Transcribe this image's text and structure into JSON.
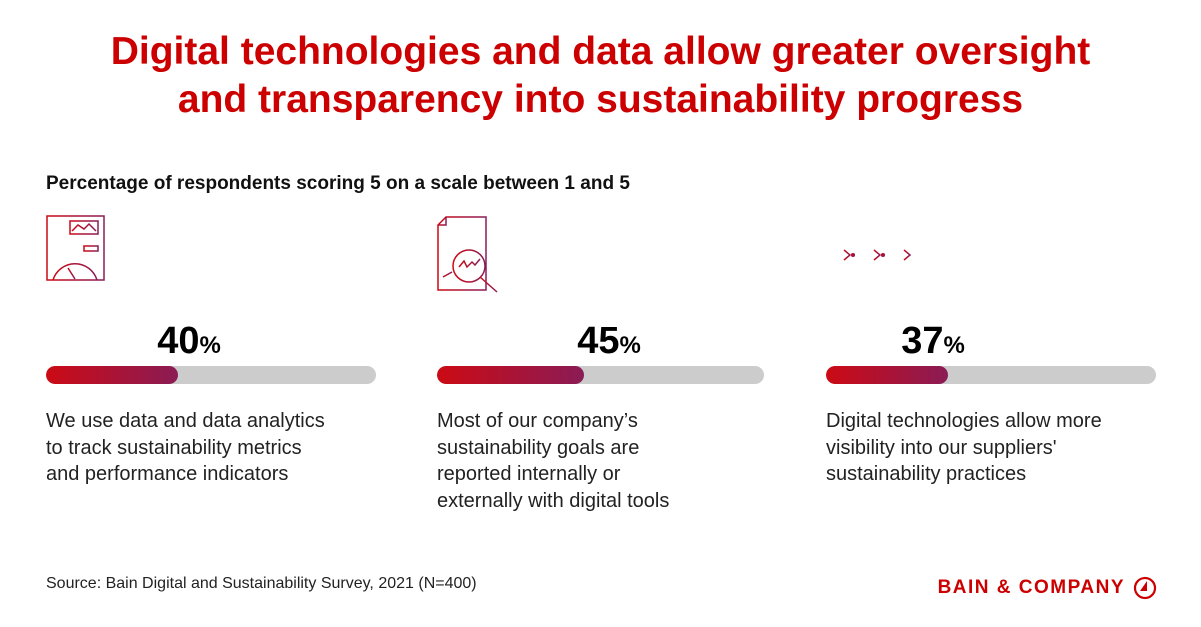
{
  "title": {
    "line1": "Digital technologies and data allow greater oversight",
    "line2": "and transparency into sustainability progress"
  },
  "subtitle": "Percentage of respondents scoring 5 on a scale between 1 and 5",
  "colors": {
    "accent": "#cc0000",
    "bar_start": "#cc0a14",
    "bar_end": "#8a1c55",
    "track": "#cccccc"
  },
  "stats": [
    {
      "icon": "dashboard-report-icon",
      "value": 40,
      "unit": "%",
      "text": "We use data and data analytics\nto track sustainability metrics\nand performance indicators"
    },
    {
      "icon": "document-magnifier-icon",
      "value": 45,
      "unit": "%",
      "text": "Most of our company’s\nsustainability goals are\nreported internally or\nexternally with digital tools"
    },
    {
      "icon": "arrows-flow-icon",
      "value": 37,
      "unit": "%",
      "text": "Digital technologies allow more\nvisibility into our suppliers'\nsustainability practices"
    }
  ],
  "source": "Source: Bain Digital and Sustainability Survey, 2021 (N=400)",
  "logo": "BAIN & COMPANY"
}
